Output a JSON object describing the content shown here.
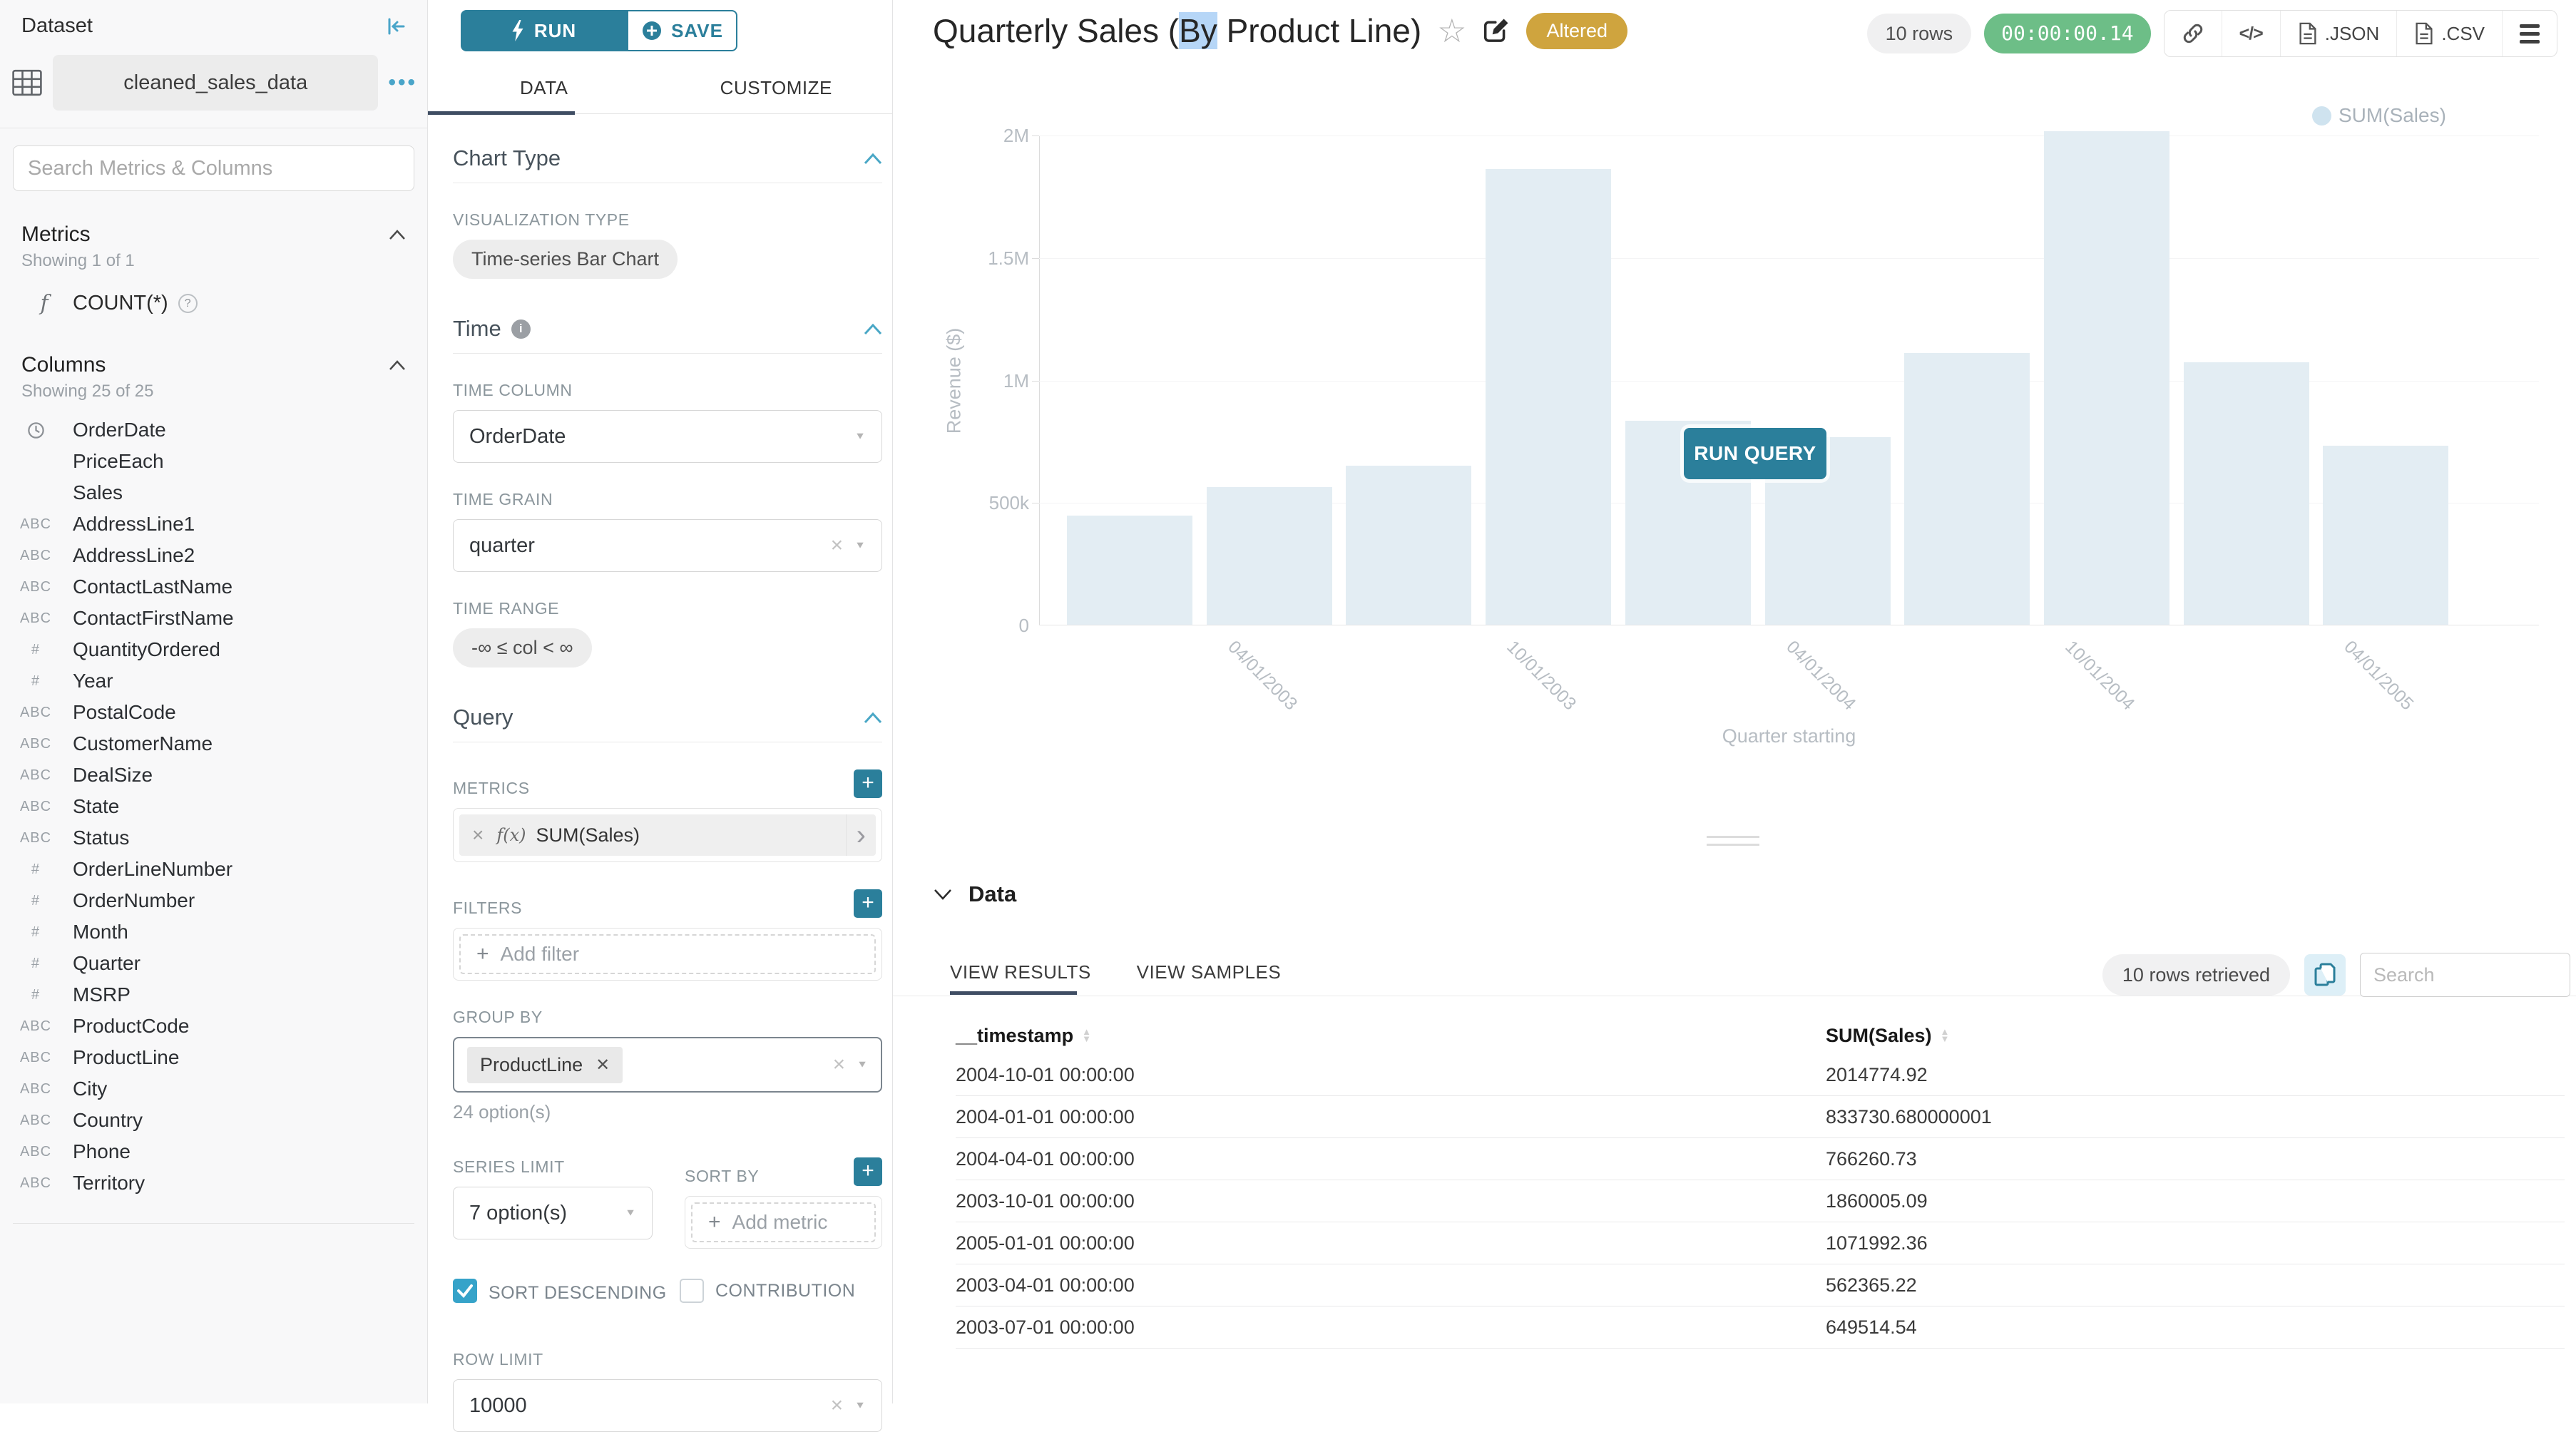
{
  "colors": {
    "primary": "#2b7f9b",
    "chevron": "#49a7c6",
    "ink": "#3f4d63",
    "altered": "#cfa43e",
    "green": "#6dbe87",
    "bar": "#e3edf3",
    "legend_dot": "#cfe3ef",
    "selection": "#b6d6f7"
  },
  "sidebar": {
    "title": "Dataset",
    "dataset_name": "cleaned_sales_data",
    "search_placeholder": "Search Metrics & Columns",
    "metrics_header": "Metrics",
    "metrics_showing": "Showing 1 of 1",
    "metric_fn_glyph": "f",
    "metric_label": "COUNT(*)",
    "columns_header": "Columns",
    "columns_showing": "Showing 25 of 25",
    "columns": [
      {
        "icon": "clock",
        "label": "OrderDate"
      },
      {
        "icon": "",
        "label": "PriceEach"
      },
      {
        "icon": "",
        "label": "Sales"
      },
      {
        "icon": "ABC",
        "label": "AddressLine1"
      },
      {
        "icon": "ABC",
        "label": "AddressLine2"
      },
      {
        "icon": "ABC",
        "label": "ContactLastName"
      },
      {
        "icon": "ABC",
        "label": "ContactFirstName"
      },
      {
        "icon": "#",
        "label": "QuantityOrdered"
      },
      {
        "icon": "#",
        "label": "Year"
      },
      {
        "icon": "ABC",
        "label": "PostalCode"
      },
      {
        "icon": "ABC",
        "label": "CustomerName"
      },
      {
        "icon": "ABC",
        "label": "DealSize"
      },
      {
        "icon": "ABC",
        "label": "State"
      },
      {
        "icon": "ABC",
        "label": "Status"
      },
      {
        "icon": "#",
        "label": "OrderLineNumber"
      },
      {
        "icon": "#",
        "label": "OrderNumber"
      },
      {
        "icon": "#",
        "label": "Month"
      },
      {
        "icon": "#",
        "label": "Quarter"
      },
      {
        "icon": "#",
        "label": "MSRP"
      },
      {
        "icon": "ABC",
        "label": "ProductCode"
      },
      {
        "icon": "ABC",
        "label": "ProductLine"
      },
      {
        "icon": "ABC",
        "label": "City"
      },
      {
        "icon": "ABC",
        "label": "Country"
      },
      {
        "icon": "ABC",
        "label": "Phone"
      },
      {
        "icon": "ABC",
        "label": "Territory"
      }
    ]
  },
  "controls": {
    "run_label": "RUN",
    "save_label": "SAVE",
    "tab_data": "DATA",
    "tab_customize": "CUSTOMIZE",
    "chart_type_header": "Chart Type",
    "viz_type_label": "VISUALIZATION TYPE",
    "viz_type_value": "Time-series Bar Chart",
    "time_header": "Time",
    "time_column_label": "TIME COLUMN",
    "time_column_value": "OrderDate",
    "time_grain_label": "TIME GRAIN",
    "time_grain_value": "quarter",
    "time_range_label": "TIME RANGE",
    "time_range_value": "-∞ ≤ col < ∞",
    "query_header": "Query",
    "metrics_label": "METRICS",
    "metric_fx": "f(x)",
    "metric_value": "SUM(Sales)",
    "filters_label": "FILTERS",
    "add_filter_label": "Add filter",
    "groupby_label": "GROUP BY",
    "groupby_value": "ProductLine",
    "groupby_hint": "24 option(s)",
    "series_limit_label": "SERIES LIMIT",
    "series_limit_value": "7 option(s)",
    "sort_by_label": "SORT BY",
    "add_metric_label": "Add metric",
    "sort_descending_label": "SORT DESCENDING",
    "contribution_label": "CONTRIBUTION",
    "row_limit_label": "ROW LIMIT",
    "row_limit_value": "10000"
  },
  "header": {
    "title_prefix": "Quarterly Sales (",
    "title_selected": "By",
    "title_suffix": " Product Line)",
    "altered_badge": "Altered",
    "rows_badge": "10 rows",
    "timer": "00:00:00.14",
    "export_json_label": ".JSON",
    "export_csv_label": ".CSV"
  },
  "chart": {
    "run_query_label": "RUN QUERY"
  },
  "chart_data": {
    "type": "bar",
    "title": "Quarterly Sales (By Product Line)",
    "legend": [
      "SUM(Sales)"
    ],
    "legend_position": "top-right",
    "xlabel": "Quarter starting",
    "ylabel": "Revenue ($)",
    "ylim": [
      0,
      2000000
    ],
    "grid": true,
    "yticks": [
      {
        "value": 0,
        "label": "0"
      },
      {
        "value": 500000,
        "label": "500k"
      },
      {
        "value": 1000000,
        "label": "1M"
      },
      {
        "value": 1500000,
        "label": "1.5M"
      },
      {
        "value": 2000000,
        "label": "2M"
      }
    ],
    "x": [
      "2003-01-01",
      "2003-04-01",
      "2003-07-01",
      "2003-10-01",
      "2004-01-01",
      "2004-04-01",
      "2004-07-01",
      "2004-10-01",
      "2005-01-01",
      "2005-04-01"
    ],
    "series": [
      {
        "name": "SUM(Sales)",
        "values": [
          445000,
          562365.22,
          649514.54,
          1860005.09,
          833730.68,
          766260.73,
          1110000,
          2014774.92,
          1071992.36,
          730000
        ]
      }
    ],
    "xtick_labels": [
      {
        "index": 1,
        "label": "04/01/2003"
      },
      {
        "index": 3,
        "label": "10/01/2003"
      },
      {
        "index": 5,
        "label": "04/01/2004"
      },
      {
        "index": 7,
        "label": "10/01/2004"
      },
      {
        "index": 9,
        "label": "04/01/2005"
      }
    ]
  },
  "data_panel": {
    "title": "Data",
    "tab_results": "VIEW RESULTS",
    "tab_samples": "VIEW SAMPLES",
    "rows_retrieved": "10 rows retrieved",
    "search_placeholder": "Search",
    "table": {
      "columns": [
        "__timestamp",
        "SUM(Sales)"
      ],
      "rows": [
        [
          "2004-10-01 00:00:00",
          "2014774.92"
        ],
        [
          "2004-01-01 00:00:00",
          "833730.680000001"
        ],
        [
          "2004-04-01 00:00:00",
          "766260.73"
        ],
        [
          "2003-10-01 00:00:00",
          "1860005.09"
        ],
        [
          "2005-01-01 00:00:00",
          "1071992.36"
        ],
        [
          "2003-04-01 00:00:00",
          "562365.22"
        ],
        [
          "2003-07-01 00:00:00",
          "649514.54"
        ]
      ]
    }
  }
}
